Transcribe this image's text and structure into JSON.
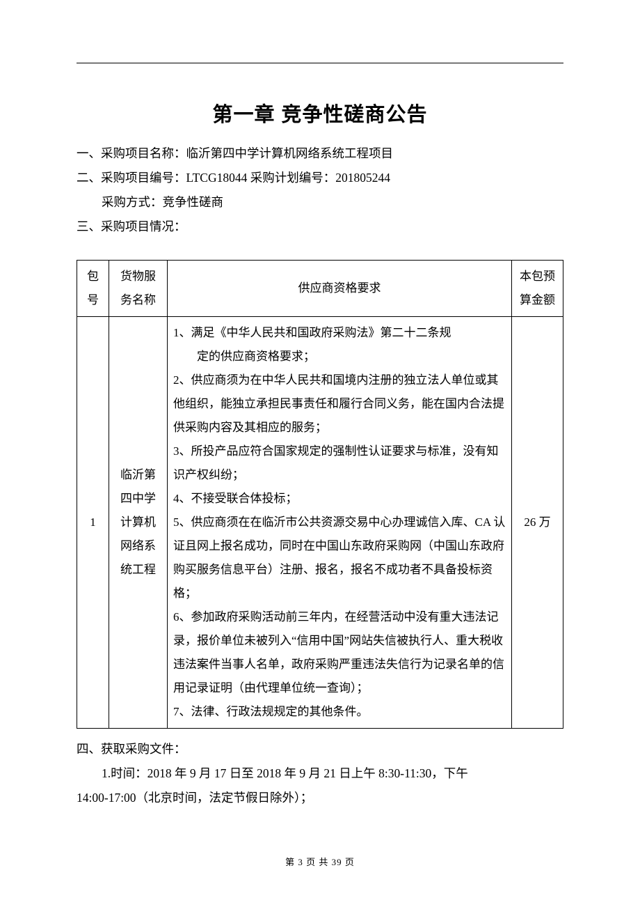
{
  "chapter_title": "第一章   竞争性磋商公告",
  "items": {
    "i1": "一、采购项目名称：临沂第四中学计算机网络系统工程项目",
    "i2": "二、采购项目编号：LTCG18044   采购计划编号：201805244",
    "i2b": "采购方式：竞争性磋商",
    "i3": "三、采购项目情况：",
    "i4": "四、获取采购文件：",
    "i4_1a": "1.时间：2018 年 9 月 17 日至 2018 年 9 月 21 日上午 8:30-11:30，下午",
    "i4_1b": "14:00-17:00（北京时间，法定节假日除外）；"
  },
  "table": {
    "headers": {
      "pkg": "包号",
      "name": "货物服务名称",
      "req": "供应商资格要求",
      "budget": "本包预算金额"
    },
    "row": {
      "pkg": "1",
      "name": "临沂第四中学计算机网络系统工程",
      "budget": "26 万",
      "req_lines": [
        "1、满足《中华人民共和国政府采购法》第二十二条规",
        "定的供应商资格要求；",
        "2、供应商须为在中华人民共和国境内注册的独立法人单位或其他组织，能独立承担民事责任和履行合同义务，能在国内合法提供采购内容及其相应的服务；",
        "3、所投产品应符合国家规定的强制性认证要求与标准，没有知识产权纠纷；",
        "4、不接受联合体投标；",
        "5、供应商须在在临沂市公共资源交易中心办理诚信入库、CA 认证且网上报名成功，同时在中国山东政府采购网（中国山东政府购买服务信息平台）注册、报名，报名不成功者不具备投标资格；",
        "6、参加政府采购活动前三年内，在经营活动中没有重大违法记录，报价单位未被列入“信用中国”网站失信被执行人、重大税收违法案件当事人名单，政府采购严重违法失信行为记录名单的信用记录证明（由代理单位统一查询）；",
        "7、法律、行政法规规定的其他条件。"
      ]
    }
  },
  "footer": "第 3 页 共 39 页"
}
